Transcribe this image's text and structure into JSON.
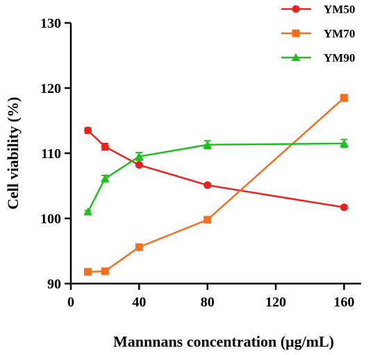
{
  "chart_data": {
    "type": "line",
    "title": "",
    "xlabel": "Mannnans concentration (μg/mL)",
    "ylabel": "Cell viability (%)",
    "x": [
      10,
      20,
      40,
      80,
      160
    ],
    "x_ticks": [
      0,
      40,
      80,
      120,
      160
    ],
    "x_tick_labels": [
      "0",
      "40",
      "80",
      "120",
      "160"
    ],
    "xlim": [
      0,
      170
    ],
    "ylim": [
      90,
      130
    ],
    "y_ticks": [
      90,
      100,
      110,
      120,
      130
    ],
    "y_tick_labels": [
      "90",
      "100",
      "110",
      "120",
      "130"
    ],
    "grid": false,
    "legend_position": "top-right",
    "series": [
      {
        "name": "YM50",
        "color": "#e8231e",
        "marker": "circle",
        "values": [
          113.5,
          111.0,
          108.2,
          105.1,
          101.7
        ],
        "errors": [
          0.4,
          0.5,
          0.2,
          0.2,
          0.2
        ]
      },
      {
        "name": "YM70",
        "color": "#f07020",
        "marker": "square",
        "values": [
          91.8,
          91.9,
          95.6,
          99.8,
          118.5
        ],
        "errors": [
          0.2,
          0.2,
          0.3,
          0.2,
          0.5
        ]
      },
      {
        "name": "YM90",
        "color": "#1fbf1f",
        "marker": "triangle",
        "values": [
          101.0,
          106.1,
          109.5,
          111.3,
          111.5
        ],
        "errors": [
          0.2,
          0.5,
          0.6,
          0.6,
          0.6
        ]
      }
    ]
  }
}
